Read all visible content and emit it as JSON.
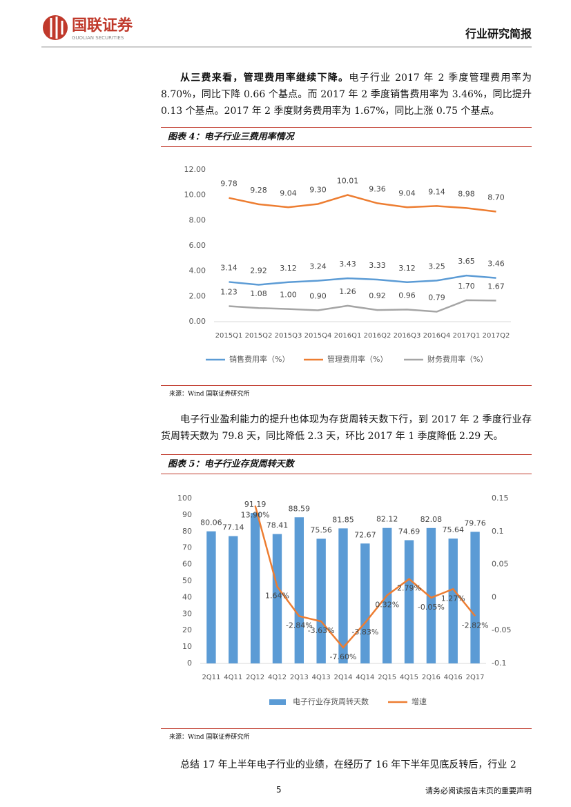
{
  "header": {
    "logo": "国联证券",
    "logo_en": "GUOLIAN SECURITIES",
    "report_type": "行业研究简报"
  },
  "paragraph1": {
    "lead": "从三费来看，管理费用率继续下降。",
    "text": "电子行业 2017 年 2 季度管理费用率为 8.70%，同比下降 0.66 个基点。而 2017 年 2 季度销售费用率为 3.46%，同比提升 0.13 个基点。2017 年 2 季度财务费用率为 1.67%，同比上涨 0.75 个基点。"
  },
  "figure4": {
    "title": "图表 4：电子行业三费用率情况",
    "source": "来源：Wind 国联证券研究所",
    "chart": {
      "type": "line",
      "categories": [
        "2015Q1",
        "2015Q2",
        "2015Q3",
        "2015Q4",
        "2016Q1",
        "2016Q2",
        "2016Q3",
        "2016Q4",
        "2017Q1",
        "2017Q2"
      ],
      "ylim": [
        0,
        12
      ],
      "yticks": [
        {
          "value": 0,
          "label": "0.00"
        },
        {
          "value": 2,
          "label": "2.00"
        },
        {
          "value": 4,
          "label": "4.00"
        },
        {
          "value": 6,
          "label": "6.00"
        },
        {
          "value": 8,
          "label": "8.00"
        },
        {
          "value": 10,
          "label": "10.00"
        },
        {
          "value": 12,
          "label": "12.00"
        }
      ],
      "series": [
        {
          "name": "销售费用率（%）",
          "color": "#5b9bd5",
          "values": [
            3.14,
            2.92,
            3.12,
            3.24,
            3.43,
            3.33,
            3.12,
            3.25,
            3.65,
            3.46
          ],
          "value_labels": [
            "3.14",
            "2.92",
            "3.12",
            "3.24",
            "3.43",
            "3.33",
            "3.12",
            "3.25",
            "3.65",
            "3.46"
          ]
        },
        {
          "name": "管理费用率（%）",
          "color": "#ed7d31",
          "values": [
            9.78,
            9.28,
            9.04,
            9.3,
            10.01,
            9.36,
            9.04,
            9.14,
            8.98,
            8.7
          ],
          "value_labels": [
            "9.78",
            "9.28",
            "9.04",
            "9.30",
            "10.01",
            "9.36",
            "9.04",
            "9.14",
            "8.98",
            "8.70"
          ]
        },
        {
          "name": "财务费用率（%）",
          "color": "#a5a5a5",
          "values": [
            1.23,
            1.08,
            1.0,
            0.9,
            1.26,
            0.92,
            0.96,
            0.79,
            1.7,
            1.67
          ],
          "value_labels": [
            "1.23",
            "1.08",
            "1.00",
            "0.90",
            "1.26",
            "0.92",
            "0.96",
            "0.79",
            "1.70",
            "1.67"
          ]
        }
      ]
    }
  },
  "paragraph2": {
    "text": "电子行业盈利能力的提升也体现为存货周转天数下行，到 2017 年 2 季度行业存货周转天数为 79.8 天，同比降低 2.3 天，环比 2017 年 1 季度降低 2.29 天。"
  },
  "figure5": {
    "title": "图表 5：电子行业存货周转天数",
    "source": "来源：Wind 国联证券研究所",
    "chart": {
      "type": "bar",
      "categories": [
        "2Q11",
        "4Q11",
        "2Q12",
        "4Q12",
        "2Q13",
        "4Q13",
        "2Q14",
        "4Q14",
        "2Q15",
        "4Q15",
        "2Q16",
        "4Q16",
        "2Q17"
      ],
      "ylim": [
        0,
        100
      ],
      "yticks": [
        0,
        10,
        20,
        30,
        40,
        50,
        60,
        70,
        80,
        90,
        100
      ],
      "y2lim": [
        -0.1,
        0.15
      ],
      "y2ticks": [
        -0.1,
        -0.05,
        0,
        0.05,
        0.1,
        0.15
      ],
      "series": [
        {
          "name": "电子行业存货周转天数",
          "color": "#5b9bd5",
          "values": [
            80.06,
            77.14,
            91.19,
            78.41,
            88.59,
            75.56,
            81.85,
            72.67,
            82.12,
            74.69,
            82.08,
            75.64,
            79.76
          ]
        },
        {
          "name": "增速",
          "color": "#ed7d31",
          "axis": "y2",
          "values": [
            null,
            null,
            0.139,
            0.0164,
            -0.0284,
            -0.0363,
            -0.076,
            -0.0383,
            0.0032,
            0.0279,
            -0.0005,
            0.0127,
            -0.0282
          ],
          "value_labels": [
            null,
            null,
            "13.90%",
            "1.64%",
            "-2.84%",
            "-3.63%",
            "-7.60%",
            "-3.83%",
            "0.32%",
            "2.79%",
            "-0.05%",
            "1.27%",
            "-2.82%"
          ]
        }
      ]
    }
  },
  "paragraph3": {
    "text": "总结 17 年上半年电子行业的业绩，在经历了 16 年下半年见底反转后，行业 2"
  },
  "footer": {
    "page": "5",
    "notice": "请务必阅读报告末页的重要声明"
  }
}
